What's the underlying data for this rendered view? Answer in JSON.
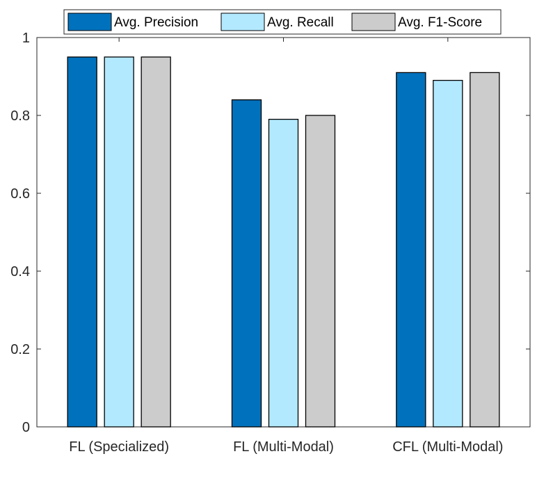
{
  "chart_data": {
    "type": "bar",
    "title": "",
    "xlabel": "",
    "ylabel": "",
    "categories": [
      "FL (Specialized)",
      "FL (Multi-Modal)",
      "CFL (Multi-Modal)"
    ],
    "series": [
      {
        "name": "Avg. Precision",
        "values": [
          0.95,
          0.84,
          0.91
        ],
        "color": "#0072BD"
      },
      {
        "name": "Avg. Recall",
        "values": [
          0.95,
          0.79,
          0.89
        ],
        "color": "#B3E9FF"
      },
      {
        "name": "Avg. F1-Score",
        "values": [
          0.95,
          0.8,
          0.91
        ],
        "color": "#CCCCCC"
      }
    ],
    "ylim": [
      0,
      1
    ],
    "yticks": [
      "0",
      "0.2",
      "0.4",
      "0.6",
      "0.8",
      "1"
    ],
    "grid": false,
    "legend_position": "top"
  }
}
